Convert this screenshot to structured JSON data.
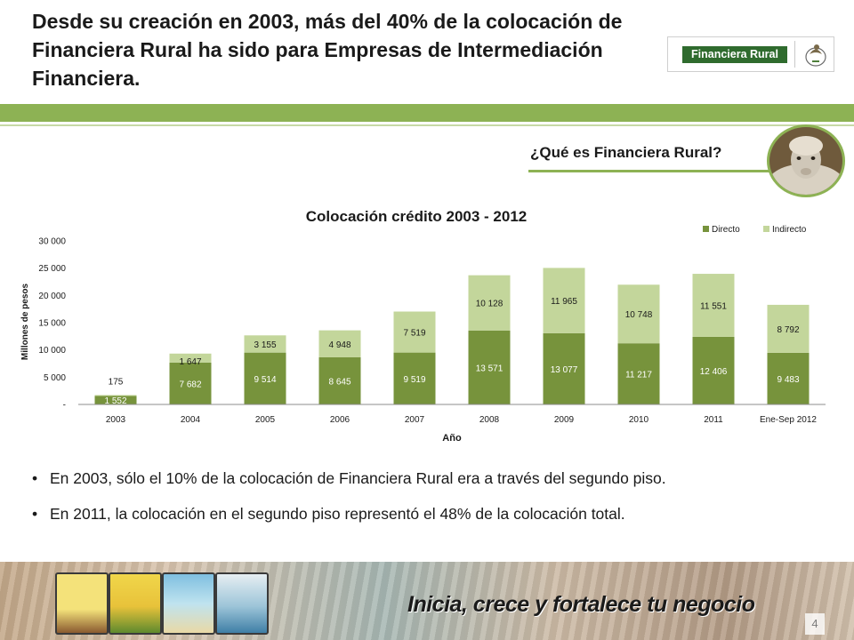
{
  "header": {
    "title": "Desde su creación en 2003, más del 40% de la colocación de Financiera Rural ha sido para Empresas de Intermediación Financiera.",
    "logo_text": "Financiera Rural"
  },
  "side": {
    "question": "¿Qué es Financiera Rural?"
  },
  "chart_data": {
    "type": "bar",
    "stacked": true,
    "title": "Colocación crédito 2003 - 2012",
    "xlabel": "Año",
    "ylabel": "Millones de pesos",
    "ylim": [
      0,
      30000
    ],
    "yticks": [
      0,
      5000,
      10000,
      15000,
      20000,
      25000,
      30000
    ],
    "ytick_labels": [
      "-",
      "5 000",
      "10 000",
      "15 000",
      "20 000",
      "25 000",
      "30 000"
    ],
    "categories": [
      "2003",
      "2004",
      "2005",
      "2006",
      "2007",
      "2008",
      "2009",
      "2010",
      "2011",
      "Ene-Sep 2012"
    ],
    "legend_position": "top-right",
    "series": [
      {
        "name": "Directo",
        "color": "#77933c",
        "values": [
          1552,
          7682,
          9514,
          8645,
          9519,
          13571,
          13077,
          11217,
          12406,
          9483
        ],
        "labels": [
          "1 552",
          "7 682",
          "9 514",
          "8 645",
          "9 519",
          "13 571",
          "13 077",
          "11 217",
          "12 406",
          "9 483"
        ]
      },
      {
        "name": "Indirecto",
        "color": "#c3d69b",
        "values": [
          175,
          1647,
          3155,
          4948,
          7519,
          10128,
          11965,
          10748,
          11551,
          8792
        ],
        "labels": [
          "175",
          "1 647",
          "3 155",
          "4 948",
          "7 519",
          "10 128",
          "11 965",
          "10 748",
          "11 551",
          "8 792"
        ]
      }
    ]
  },
  "bullets": [
    "En 2003, sólo el 10% de la colocación de Financiera Rural era a través del segundo piso.",
    "En 2011, la colocación en el segundo piso representó el 48% de la colocación total."
  ],
  "footer": {
    "slogan": "Inicia, crece y fortalece tu negocio",
    "page_number": "4"
  }
}
